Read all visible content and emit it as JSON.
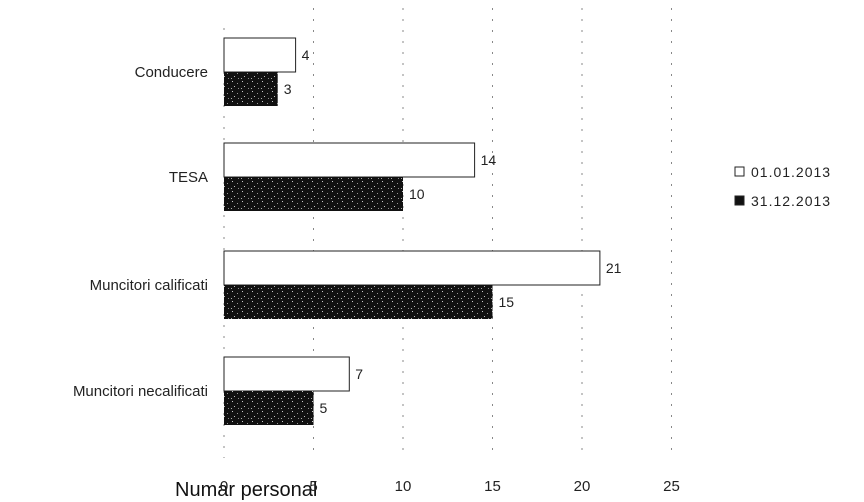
{
  "chart_data": {
    "type": "bar",
    "orientation": "horizontal",
    "categories": [
      "Conducere",
      "TESA",
      "Muncitori calificati",
      "Muncitori necalificati"
    ],
    "series": [
      {
        "name": "01.01.2013",
        "values": [
          4,
          14,
          21,
          7
        ],
        "color": "#ffffff"
      },
      {
        "name": "31.12.2013",
        "values": [
          3,
          10,
          15,
          5
        ],
        "color": "#111111"
      }
    ],
    "xlabel": "Numar personal",
    "x_ticks": [
      0,
      5,
      10,
      15,
      20,
      25
    ],
    "xlim": [
      0,
      25
    ],
    "grid": true,
    "legend_position": "right"
  }
}
